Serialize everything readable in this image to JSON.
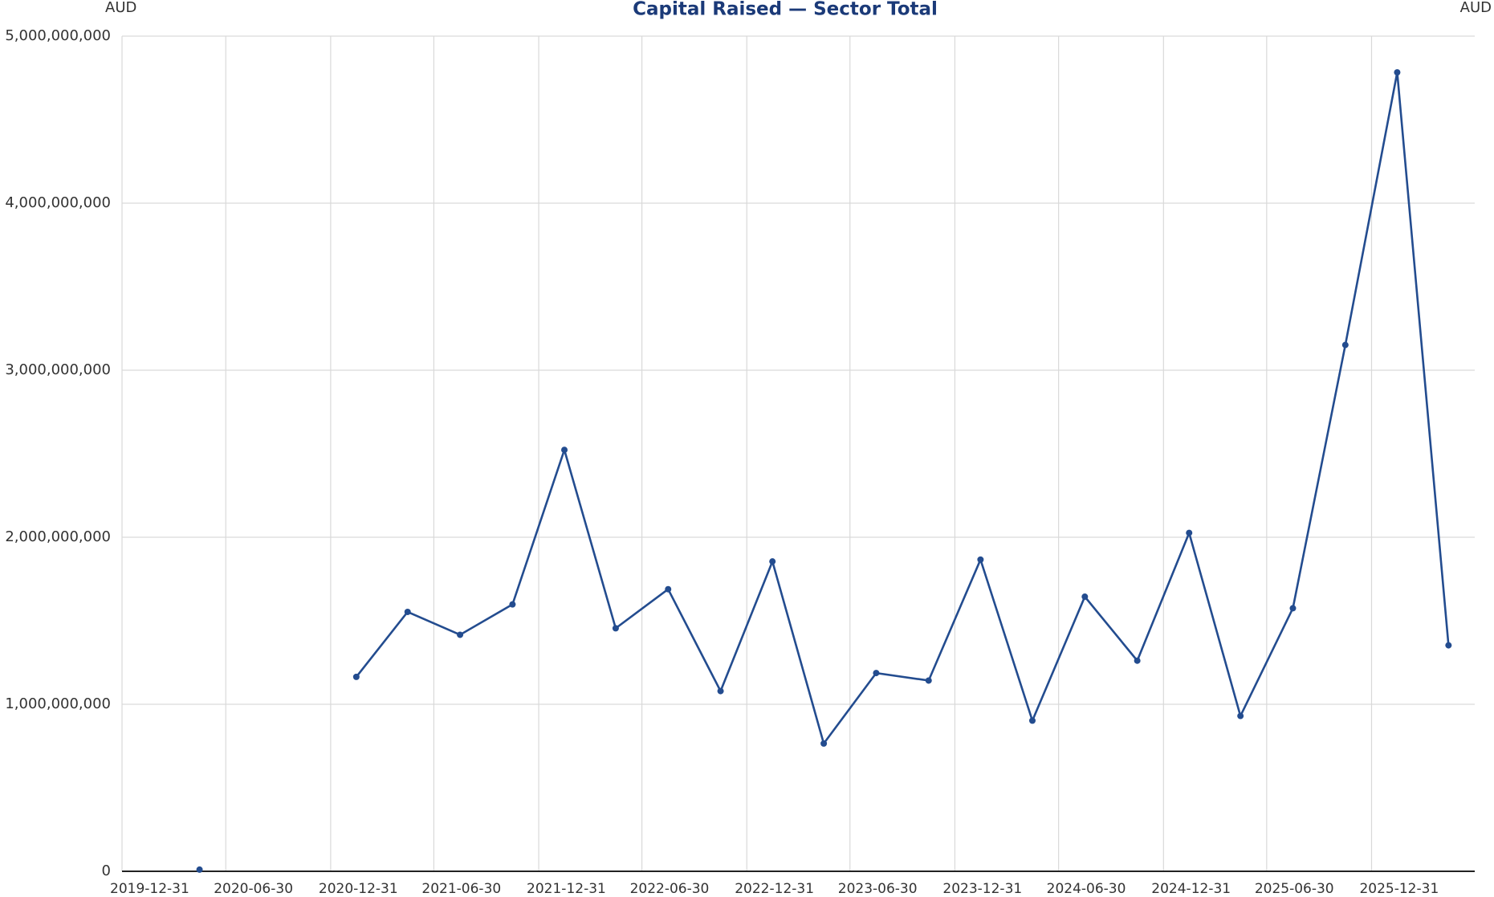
{
  "chart_data": {
    "type": "line",
    "title": "Capital Raised — Sector Total",
    "y_label": "AUD",
    "y2_label": "AUD",
    "x": [
      "2020-05-15",
      "2020-08-15",
      "2020-11-15",
      "2021-02-14",
      "2021-05-15",
      "2021-08-15",
      "2021-11-15",
      "2022-02-14",
      "2022-05-15",
      "2022-08-15",
      "2022-11-15",
      "2023-02-14",
      "2023-05-15",
      "2023-08-15",
      "2023-11-15",
      "2024-02-14",
      "2024-05-15",
      "2024-08-15",
      "2024-11-15",
      "2025-02-14",
      "2025-05-15",
      "2025-08-15",
      "2025-11-15",
      "2026-02-14",
      "2026-05-15"
    ],
    "series": [
      {
        "name": "Capital Raised",
        "color": "#234c8f",
        "values": [
          10000000,
          null,
          null,
          1164000000,
          1553000000,
          1416000000,
          1598000000,
          2523000000,
          1455000000,
          1689000000,
          1079000000,
          1855000000,
          765000000,
          1187000000,
          1142000000,
          1866000000,
          902000000,
          1644000000,
          1261000000,
          2026000000,
          930000000,
          1575000000,
          3151000000,
          4783000000,
          1353000000
        ]
      }
    ],
    "xlim": [
      "2019-12-31",
      "2026-06-30"
    ],
    "xticks": [
      "2019-12-31",
      "2020-06-30",
      "2020-12-31",
      "2021-06-30",
      "2021-12-31",
      "2022-06-30",
      "2022-12-31",
      "2023-06-30",
      "2023-12-31",
      "2024-06-30",
      "2024-12-31",
      "2025-06-30",
      "2025-12-31"
    ],
    "ylim": [
      0,
      5000000000
    ],
    "yticks": [
      0,
      {
        "value": 1000000000,
        "label": "1,000,000,000"
      },
      {
        "value": 2000000000,
        "label": "2,000,000,000"
      },
      {
        "value": 3000000000,
        "label": "3,000,000,000"
      },
      {
        "value": 4000000000,
        "label": "4,000,000,000"
      },
      {
        "value": 5000000000,
        "label": "5,000,000,000"
      }
    ],
    "grid": true
  }
}
